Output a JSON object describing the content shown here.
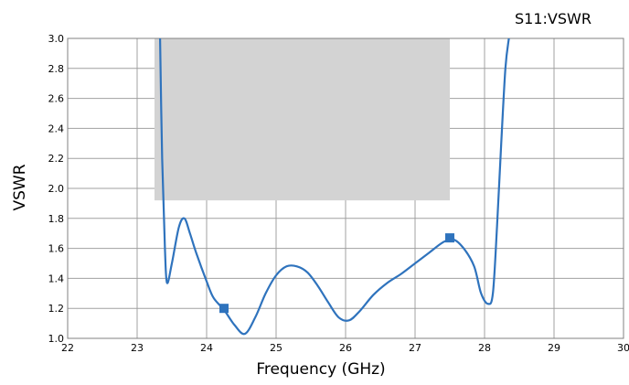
{
  "chart_data": {
    "type": "line",
    "title": "S11:VSWR",
    "xlabel": "Frequency (GHz)",
    "ylabel": "VSWR",
    "xlim": [
      22,
      30
    ],
    "ylim": [
      1.0,
      3.0
    ],
    "x_ticks": [
      "22",
      "23",
      "24",
      "25",
      "26",
      "27",
      "28",
      "29",
      "30"
    ],
    "y_ticks": [
      "1.0",
      "1.2",
      "1.4",
      "1.6",
      "1.8",
      "2.0",
      "2.2",
      "2.4",
      "2.6",
      "2.8",
      "3.0"
    ],
    "grid": true,
    "shaded_region": {
      "x_start": 23.25,
      "x_end": 27.5,
      "y_start": 1.92,
      "y_end": 3.0,
      "color": "#d3d3d3"
    },
    "series": [
      {
        "color": "#2f73bd",
        "x": [
          23.33,
          23.36,
          23.4,
          23.43,
          23.5,
          23.6,
          23.68,
          23.76,
          23.85,
          24.0,
          24.1,
          24.25,
          24.4,
          24.55,
          24.7,
          24.85,
          25.0,
          25.15,
          25.3,
          25.45,
          25.6,
          25.75,
          25.9,
          26.05,
          26.2,
          26.4,
          26.6,
          26.8,
          27.0,
          27.2,
          27.4,
          27.55,
          27.7,
          27.85,
          27.95,
          28.05,
          28.12,
          28.18,
          28.24,
          28.3,
          28.35
        ],
        "y": [
          3.0,
          2.2,
          1.6,
          1.37,
          1.5,
          1.74,
          1.8,
          1.7,
          1.57,
          1.38,
          1.27,
          1.19,
          1.09,
          1.03,
          1.14,
          1.3,
          1.42,
          1.48,
          1.48,
          1.44,
          1.35,
          1.24,
          1.14,
          1.12,
          1.18,
          1.29,
          1.37,
          1.43,
          1.5,
          1.57,
          1.64,
          1.66,
          1.6,
          1.48,
          1.3,
          1.23,
          1.3,
          1.75,
          2.3,
          2.8,
          3.0
        ]
      }
    ],
    "markers": [
      {
        "x": 24.25,
        "y": 1.2
      },
      {
        "x": 27.5,
        "y": 1.67
      }
    ]
  }
}
